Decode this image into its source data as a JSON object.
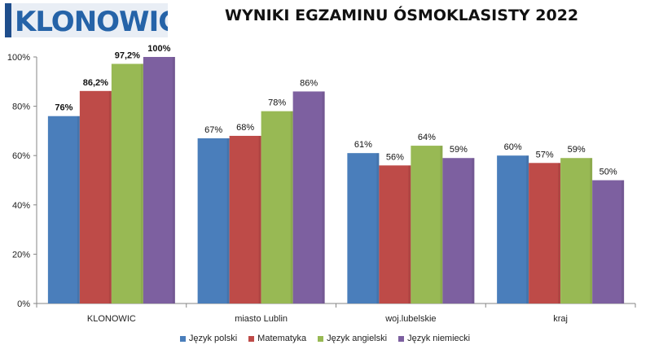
{
  "header": {
    "logo_text": "KLONOWIC",
    "title": "WYNIKI EGZAMINU ÓSMOKLASISTY 2022"
  },
  "chart_data": {
    "type": "bar",
    "title": "WYNIKI EGZAMINU ÓSMOKLASISTY 2022",
    "xlabel": "",
    "ylabel": "",
    "ylim": [
      0,
      100
    ],
    "yticks": [
      "0%",
      "20%",
      "40%",
      "60%",
      "80%",
      "100%"
    ],
    "grid": false,
    "legend_position": "bottom",
    "categories": [
      "KLONOWIC",
      "miasto Lublin",
      "woj.lubelskie",
      "kraj"
    ],
    "series": [
      {
        "name": "Język polski",
        "color": "#4a7ebb",
        "values": [
          76,
          67,
          61,
          60
        ],
        "labels": [
          "76%",
          "67%",
          "61%",
          "60%"
        ]
      },
      {
        "name": "Matematyka",
        "color": "#be4b48",
        "values": [
          86.2,
          68,
          56,
          57
        ],
        "labels": [
          "86,2%",
          "68%",
          "56%",
          "57%"
        ]
      },
      {
        "name": "Język angielski",
        "color": "#98b954",
        "values": [
          97.2,
          78,
          64,
          59
        ],
        "labels": [
          "97,2%",
          "78%",
          "64%",
          "59%"
        ]
      },
      {
        "name": "Język niemiecki",
        "color": "#7d60a0",
        "values": [
          100,
          86,
          59,
          50
        ],
        "labels": [
          "100%",
          "86%",
          "59%",
          "50%"
        ]
      }
    ],
    "bold_label_categories": [
      0
    ]
  }
}
